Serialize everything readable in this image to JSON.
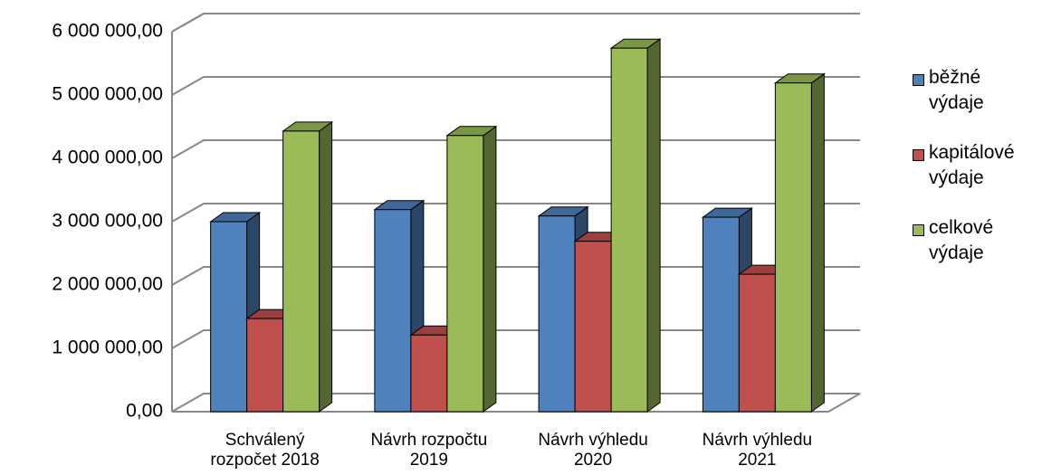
{
  "chart_data": {
    "type": "bar3d",
    "categories": [
      "Schválený rozpočet 2018",
      "Návrh rozpočtu 2019",
      "Návrh výhledu 2020",
      "Návrh výhledu 2021"
    ],
    "series": [
      {
        "name": "běžné výdaje",
        "color": "#4f81bd",
        "values": [
          3000000,
          3190000,
          3090000,
          3070000
        ]
      },
      {
        "name": "kapitálové výdaje",
        "color": "#c0504d",
        "values": [
          1470000,
          1210000,
          2690000,
          2170000
        ]
      },
      {
        "name": "celkové výdaje",
        "color": "#9bbb59",
        "values": [
          4430000,
          4360000,
          5740000,
          5190000
        ]
      }
    ],
    "ylim": [
      0,
      6000000
    ],
    "yticks": [
      {
        "value": 0,
        "label": "0,00"
      },
      {
        "value": 1000000,
        "label": "1 000 000,00"
      },
      {
        "value": 2000000,
        "label": "2 000 000,00"
      },
      {
        "value": 3000000,
        "label": "3 000 000,00"
      },
      {
        "value": 4000000,
        "label": "4 000 000,00"
      },
      {
        "value": 5000000,
        "label": "5 000 000,00"
      },
      {
        "value": 6000000,
        "label": "6 000 000,00"
      }
    ],
    "grid": true,
    "legend": "right"
  }
}
